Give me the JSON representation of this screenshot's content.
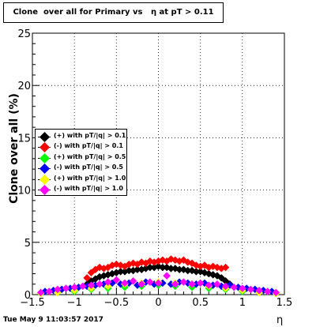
{
  "chart_data": {
    "type": "scatter",
    "title": "Clone  over all for Primary vs   η at pT > 0.11",
    "xlabel": "η",
    "ylabel": "Clone  over all (%)",
    "xlim": [
      -1.5,
      1.5
    ],
    "ylim": [
      0,
      25
    ],
    "x_ticks": [
      "−1.5",
      "−1",
      "−0.5",
      "0",
      "0.5",
      "1",
      "1.5"
    ],
    "y_ticks": [
      "0",
      "5",
      "10",
      "15",
      "20",
      "25"
    ],
    "grid": true,
    "legend_position": "left-middle",
    "series": [
      {
        "name": "(+) with pT/|q| > 0.1",
        "color": "#000000",
        "x": [
          -0.85,
          -0.8,
          -0.75,
          -0.7,
          -0.65,
          -0.6,
          -0.55,
          -0.5,
          -0.45,
          -0.4,
          -0.35,
          -0.3,
          -0.25,
          -0.2,
          -0.15,
          -0.1,
          -0.05,
          0.0,
          0.05,
          0.1,
          0.15,
          0.2,
          0.25,
          0.3,
          0.35,
          0.4,
          0.45,
          0.5,
          0.55,
          0.6,
          0.65,
          0.7,
          0.75,
          0.8,
          0.85
        ],
        "y": [
          1.0,
          1.3,
          1.5,
          1.7,
          1.8,
          1.9,
          2.0,
          2.1,
          2.2,
          2.2,
          2.3,
          2.3,
          2.4,
          2.4,
          2.5,
          2.6,
          2.6,
          2.7,
          2.6,
          2.6,
          2.5,
          2.5,
          2.4,
          2.4,
          2.3,
          2.3,
          2.2,
          2.2,
          2.1,
          2.0,
          1.9,
          1.8,
          1.6,
          1.3,
          1.0
        ]
      },
      {
        "name": "(-) with pT/|q| > 0.1",
        "color": "#ff0000",
        "x": [
          -0.85,
          -0.8,
          -0.75,
          -0.7,
          -0.65,
          -0.6,
          -0.55,
          -0.5,
          -0.45,
          -0.4,
          -0.35,
          -0.3,
          -0.25,
          -0.2,
          -0.15,
          -0.1,
          -0.05,
          0.0,
          0.05,
          0.1,
          0.15,
          0.2,
          0.25,
          0.3,
          0.35,
          0.4,
          0.45,
          0.5,
          0.55,
          0.6,
          0.65,
          0.7,
          0.75,
          0.8
        ],
        "y": [
          1.6,
          2.1,
          2.4,
          2.6,
          2.5,
          2.6,
          2.8,
          2.9,
          2.8,
          2.7,
          2.9,
          3.0,
          2.9,
          3.1,
          3.0,
          3.2,
          3.1,
          3.2,
          3.3,
          3.2,
          3.4,
          3.3,
          3.2,
          3.3,
          3.1,
          3.0,
          2.8,
          2.7,
          2.8,
          2.6,
          2.7,
          2.6,
          2.5,
          2.6
        ]
      },
      {
        "name": "(+) with pT/|q| > 0.5",
        "color": "#00ff00",
        "x": [
          -1.4,
          -1.2,
          -1.0,
          -0.8,
          -0.6,
          -0.4,
          -0.2,
          0.0,
          0.2,
          0.4,
          0.6,
          0.8,
          1.0,
          1.2,
          1.4
        ],
        "y": [
          0.1,
          0.2,
          0.3,
          0.5,
          0.6,
          0.7,
          0.8,
          0.9,
          0.8,
          0.7,
          0.6,
          0.5,
          0.3,
          0.2,
          0.1
        ]
      },
      {
        "name": "(-) with pT/|q| > 0.5",
        "color": "#0000ff",
        "x": [
          -1.35,
          -1.25,
          -1.15,
          -1.05,
          -0.95,
          -0.85,
          -0.75,
          -0.65,
          -0.55,
          -0.45,
          -0.35,
          -0.25,
          -0.15,
          -0.05,
          0.05,
          0.15,
          0.25,
          0.35,
          0.45,
          0.55,
          0.65,
          0.75,
          0.85,
          0.95,
          1.05,
          1.15,
          1.25,
          1.35
        ],
        "y": [
          0.3,
          0.4,
          0.5,
          0.6,
          0.7,
          0.8,
          0.9,
          1.0,
          1.1,
          1.0,
          1.1,
          0.9,
          1.2,
          1.0,
          1.1,
          1.0,
          1.2,
          1.1,
          1.0,
          1.1,
          0.9,
          0.8,
          0.9,
          0.7,
          0.6,
          0.5,
          0.4,
          0.3
        ]
      },
      {
        "name": "(+) with pT/|q| > 1.0",
        "color": "#ffff00",
        "x": [
          -1.4,
          -1.2,
          -1.0,
          -0.8,
          -0.6,
          -0.4,
          -0.2,
          0.0,
          0.2,
          0.4,
          0.6,
          0.8,
          1.0,
          1.2,
          1.4
        ],
        "y": [
          0.1,
          0.2,
          0.4,
          0.6,
          0.8,
          1.0,
          1.1,
          1.2,
          1.1,
          1.0,
          0.8,
          0.6,
          0.4,
          0.2,
          0.1
        ]
      },
      {
        "name": "(-) with pT/|q| > 1.0",
        "color": "#ff00ff",
        "x": [
          -1.4,
          -1.3,
          -1.2,
          -1.1,
          -1.0,
          -0.9,
          -0.8,
          -0.7,
          -0.6,
          -0.5,
          -0.4,
          -0.3,
          -0.2,
          -0.1,
          0.0,
          0.1,
          0.2,
          0.3,
          0.4,
          0.5,
          0.6,
          0.7,
          0.8,
          0.9,
          1.0,
          1.1,
          1.2,
          1.3,
          1.4
        ],
        "y": [
          0.2,
          0.3,
          0.5,
          0.6,
          0.7,
          0.8,
          0.9,
          1.0,
          1.2,
          1.4,
          1.1,
          1.3,
          1.0,
          1.2,
          1.1,
          1.8,
          1.0,
          1.2,
          1.0,
          1.1,
          0.9,
          1.0,
          0.8,
          0.7,
          0.6,
          0.5,
          0.4,
          0.3,
          0.2
        ]
      }
    ]
  },
  "footer": {
    "timestamp": "Tue May  9 11:03:57 2017"
  }
}
